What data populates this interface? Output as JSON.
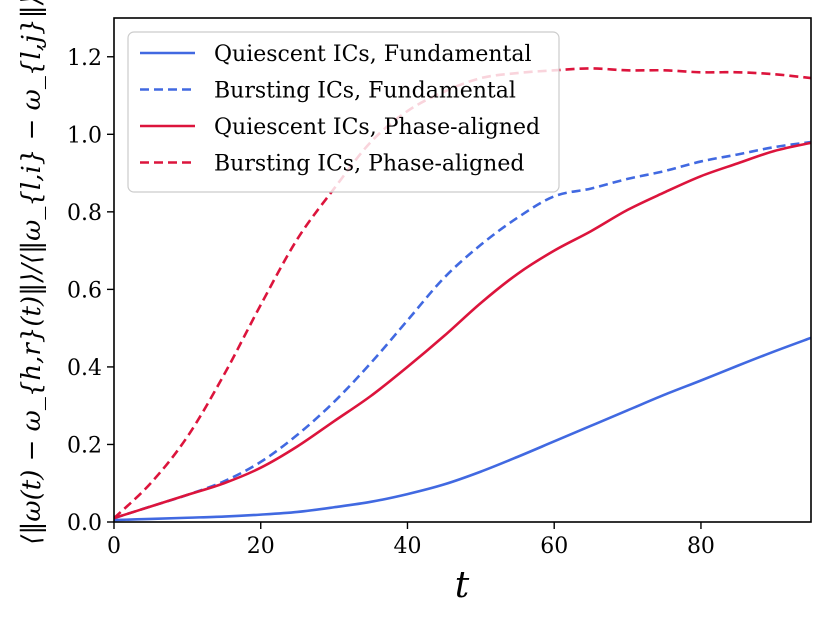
{
  "chart_data": {
    "type": "line",
    "title": "",
    "xlabel": "t",
    "ylabel": "⟨‖ω(t) − ω_{h,r}(t)‖⟩/⟨‖ω_{l,i} − ω_{l,j}‖⟩",
    "xlim": [
      0,
      95
    ],
    "ylim": [
      0,
      1.3
    ],
    "xticks": [
      0,
      20,
      40,
      60,
      80
    ],
    "xtick_labels": [
      "0",
      "20",
      "40",
      "60",
      "80"
    ],
    "yticks": [
      0.0,
      0.2,
      0.4,
      0.6,
      0.8,
      1.0,
      1.2
    ],
    "ytick_labels": [
      "0.0",
      "0.2",
      "0.4",
      "0.6",
      "0.8",
      "1.0",
      "1.2"
    ],
    "grid": false,
    "legend_position": "top-left",
    "series": [
      {
        "name": "Quiescent ICs, Fundamental",
        "color": "#4169e1",
        "style": "solid",
        "x": [
          0,
          5,
          10,
          15,
          20,
          25,
          30,
          35,
          40,
          45,
          50,
          55,
          60,
          65,
          70,
          75,
          80,
          85,
          90,
          95
        ],
        "y": [
          0.005,
          0.008,
          0.011,
          0.014,
          0.019,
          0.026,
          0.038,
          0.052,
          0.072,
          0.097,
          0.13,
          0.168,
          0.208,
          0.248,
          0.288,
          0.328,
          0.365,
          0.403,
          0.44,
          0.475
        ]
      },
      {
        "name": "Bursting ICs, Fundamental",
        "color": "#4169e1",
        "style": "dashed",
        "x": [
          0,
          5,
          10,
          15,
          20,
          25,
          30,
          35,
          40,
          45,
          50,
          55,
          60,
          65,
          70,
          75,
          80,
          85,
          90,
          95
        ],
        "y": [
          0.01,
          0.04,
          0.07,
          0.105,
          0.155,
          0.225,
          0.31,
          0.41,
          0.52,
          0.63,
          0.715,
          0.785,
          0.84,
          0.86,
          0.885,
          0.905,
          0.93,
          0.948,
          0.967,
          0.98
        ]
      },
      {
        "name": "Quiescent ICs, Phase-aligned",
        "color": "#dc143c",
        "style": "solid",
        "x": [
          0,
          5,
          10,
          15,
          20,
          25,
          30,
          35,
          40,
          45,
          50,
          55,
          60,
          65,
          70,
          75,
          80,
          85,
          90,
          95
        ],
        "y": [
          0.01,
          0.04,
          0.07,
          0.1,
          0.14,
          0.195,
          0.26,
          0.325,
          0.4,
          0.48,
          0.565,
          0.64,
          0.7,
          0.75,
          0.805,
          0.85,
          0.892,
          0.925,
          0.957,
          0.978
        ]
      },
      {
        "name": "Bursting ICs, Phase-aligned",
        "color": "#dc143c",
        "style": "dashed",
        "x": [
          0,
          5,
          10,
          15,
          20,
          25,
          30,
          35,
          40,
          45,
          50,
          55,
          60,
          65,
          70,
          75,
          80,
          85,
          90,
          95
        ],
        "y": [
          0.01,
          0.1,
          0.22,
          0.38,
          0.56,
          0.73,
          0.86,
          0.98,
          1.06,
          1.11,
          1.145,
          1.158,
          1.165,
          1.17,
          1.165,
          1.165,
          1.16,
          1.16,
          1.155,
          1.145
        ]
      }
    ]
  }
}
